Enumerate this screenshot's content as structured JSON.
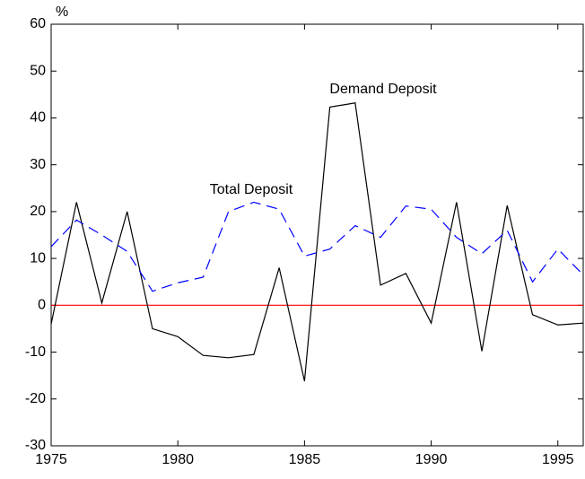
{
  "chart_data": {
    "type": "line",
    "y_label": "%",
    "x": [
      1975,
      1976,
      1977,
      1978,
      1979,
      1980,
      1981,
      1982,
      1983,
      1984,
      1985,
      1986,
      1987,
      1988,
      1989,
      1990,
      1991,
      1992,
      1993,
      1994,
      1995,
      1996
    ],
    "series": [
      {
        "name": "Demand Deposit",
        "color": "#000000",
        "dash": "none",
        "values": [
          -4,
          22,
          0.5,
          20,
          -5,
          -6.7,
          -10.7,
          -11.2,
          -10.5,
          8,
          -16.2,
          42.3,
          43.2,
          4.3,
          6.8,
          -3.8,
          22,
          -9.8,
          21.3,
          -2,
          -4.2,
          -3.8
        ]
      },
      {
        "name": "Total Deposit",
        "color": "#0000ff",
        "dash": "12 7",
        "values": [
          12.5,
          18.2,
          15,
          11.5,
          3,
          4.8,
          6,
          20,
          22,
          20.5,
          10.5,
          12,
          17,
          14.5,
          21.2,
          20.5,
          14.5,
          11,
          16,
          5,
          12,
          6.5
        ]
      }
    ],
    "reference_line": {
      "value": 0,
      "color": "#ff0000"
    },
    "xlim": [
      1975,
      1996
    ],
    "xticks": [
      1975,
      1980,
      1985,
      1990,
      1995
    ],
    "ylim": [
      -30,
      60
    ],
    "yticks": [
      -30,
      -20,
      -10,
      0,
      10,
      20,
      30,
      40,
      50,
      60
    ],
    "grid": false
  }
}
